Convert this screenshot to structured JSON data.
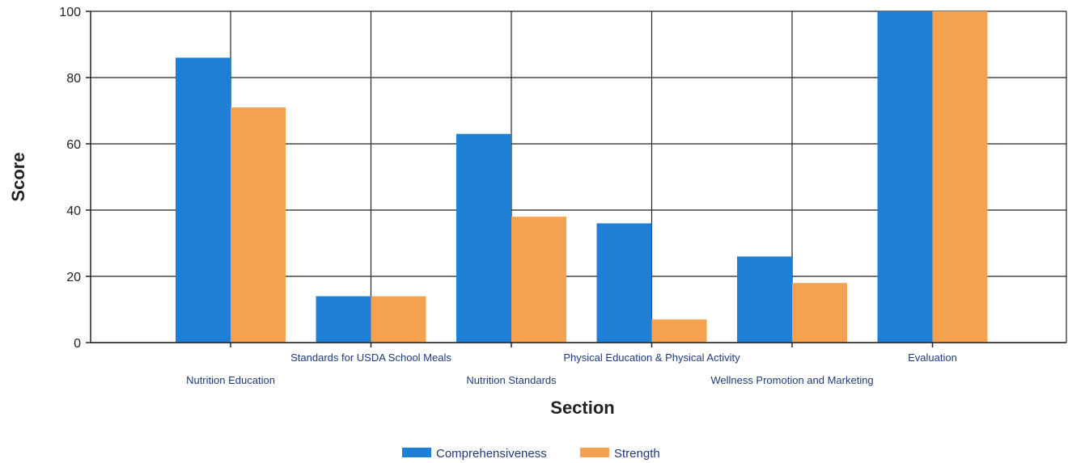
{
  "chart_data": {
    "type": "bar",
    "categories": [
      "Nutrition Education",
      "Standards for USDA School Meals",
      "Nutrition Standards",
      "Physical Education & Physical Activity",
      "Wellness Promotion and Marketing",
      "Evaluation"
    ],
    "series": [
      {
        "name": "Comprehensiveness",
        "color": "#1f7fd4",
        "values": [
          86,
          14,
          63,
          36,
          26,
          100
        ]
      },
      {
        "name": "Strength",
        "color": "#f4a150",
        "values": [
          71,
          14,
          38,
          7,
          18,
          100
        ]
      }
    ],
    "title": "",
    "xlabel": "Section",
    "ylabel": "Score",
    "ylim": [
      0,
      100
    ],
    "yticks": [
      0,
      20,
      40,
      60,
      80,
      100
    ],
    "grid": true,
    "legend": "bottom-center"
  }
}
